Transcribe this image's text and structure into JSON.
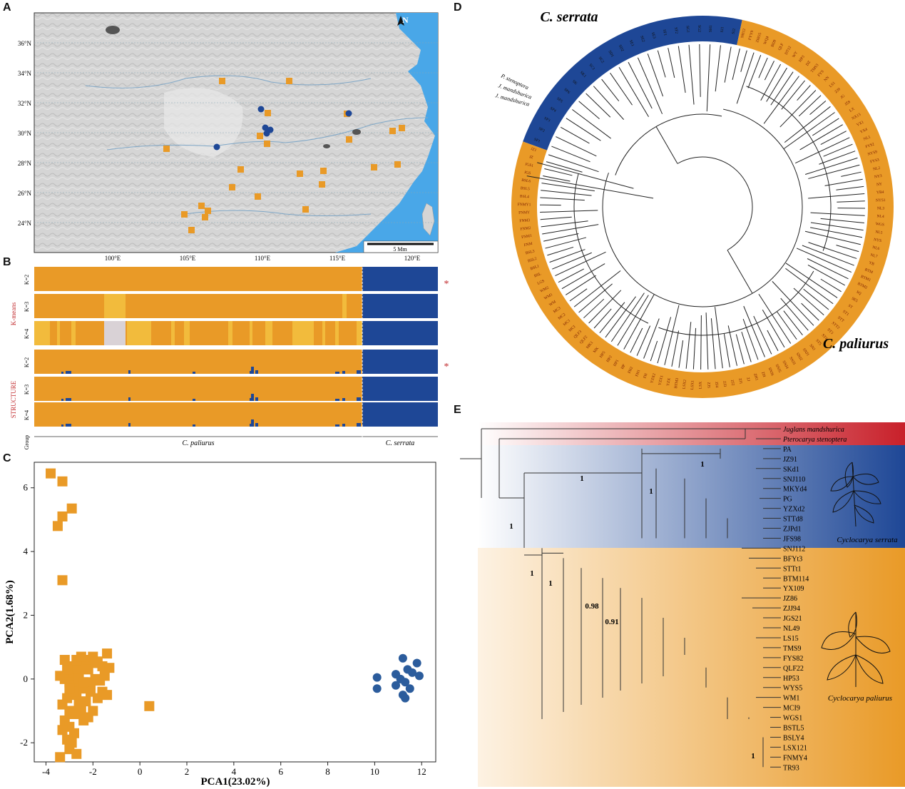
{
  "panels": {
    "a": "A",
    "b": "B",
    "c": "C",
    "d": "D",
    "e": "E"
  },
  "colors": {
    "orange": "#E99A27",
    "blue": "#1E4796",
    "light_orange": "#F2BB3C",
    "pale_gray": "#D9D2D6",
    "sea": "#49A7E8"
  },
  "map": {
    "lat_labels": [
      "36°N",
      "34°N",
      "32°N",
      "30°N",
      "28°N",
      "26°N",
      "24°N"
    ],
    "lon_labels": [
      "100°E",
      "105°E",
      "110°E",
      "115°E",
      "120°E"
    ],
    "scale_label": "5 Mm",
    "north_label": "N"
  },
  "structure_bars": {
    "kmeans_label": "K-means",
    "structure_label": "STRUCTURE",
    "row_labels": [
      "K=2",
      "K=3",
      "K=4",
      "K=2",
      "K=3",
      "K=4",
      "Group"
    ],
    "group_paliurus": "C. paliurus",
    "group_serrata": "C. serrata",
    "best_marker": "*"
  },
  "chart_data": {
    "type": "scatter",
    "xlabel": "PCA1(23.02%)",
    "ylabel": "PCA2(1.68%)",
    "xlim": [
      -4.5,
      12.6
    ],
    "ylim": [
      -2.6,
      6.8
    ],
    "xticks": [
      "-4",
      "-2",
      "0",
      "2",
      "4",
      "6",
      "8",
      "10",
      "12"
    ],
    "yticks": [
      "-2",
      "0",
      "2",
      "4",
      "6"
    ],
    "series": [
      {
        "color": "#E99A27",
        "marker": "square",
        "points": [
          [
            -3.8,
            6.45
          ],
          [
            -3.3,
            6.2
          ],
          [
            -2.9,
            5.35
          ],
          [
            -3.3,
            5.1
          ],
          [
            -3.5,
            4.8
          ],
          [
            -3.3,
            3.1
          ],
          [
            -3.4,
            0.1
          ],
          [
            -3.2,
            0.0
          ],
          [
            -3.0,
            -0.1
          ],
          [
            -2.8,
            0.2
          ],
          [
            -2.6,
            0.3
          ],
          [
            -2.4,
            0.5
          ],
          [
            -2.2,
            0.6
          ],
          [
            -2.0,
            0.7
          ],
          [
            -1.8,
            0.55
          ],
          [
            -1.6,
            0.4
          ],
          [
            -1.4,
            0.8
          ],
          [
            -1.3,
            0.35
          ],
          [
            -1.5,
            0.1
          ],
          [
            -1.7,
            -0.05
          ],
          [
            -1.9,
            0.0
          ],
          [
            -2.1,
            -0.2
          ],
          [
            -2.3,
            -0.1
          ],
          [
            -2.5,
            -0.3
          ],
          [
            -2.7,
            -0.5
          ],
          [
            -2.9,
            -0.2
          ],
          [
            -3.1,
            -0.6
          ],
          [
            -3.3,
            -0.8
          ],
          [
            -3.0,
            -1.0
          ],
          [
            -2.8,
            -1.1
          ],
          [
            -2.6,
            -0.8
          ],
          [
            -2.4,
            -1.3
          ],
          [
            -2.2,
            -1.2
          ],
          [
            -2.0,
            -1.0
          ],
          [
            -1.8,
            -0.6
          ],
          [
            -1.6,
            -0.4
          ],
          [
            -1.4,
            -0.5
          ],
          [
            -3.2,
            -1.3
          ],
          [
            -3.0,
            -1.5
          ],
          [
            -2.8,
            -1.7
          ],
          [
            -3.1,
            -1.9
          ],
          [
            -2.9,
            -2.0
          ],
          [
            -3.3,
            -1.6
          ],
          [
            -3.0,
            -2.2
          ],
          [
            -2.7,
            -2.35
          ],
          [
            -3.4,
            -2.45
          ],
          [
            -2.5,
            -1.0
          ],
          [
            -2.3,
            -0.7
          ],
          [
            -2.1,
            -0.4
          ],
          [
            -2.6,
            0.0
          ],
          [
            -2.4,
            -0.1
          ],
          [
            -2.9,
            0.4
          ],
          [
            -3.1,
            0.3
          ],
          [
            -3.2,
            0.6
          ],
          [
            -2.7,
            0.6
          ],
          [
            -2.5,
            0.7
          ],
          [
            -2.2,
            0.3
          ],
          [
            -1.9,
            0.5
          ],
          [
            0.4,
            -0.85
          ],
          [
            -2.8,
            -0.4
          ],
          [
            -3.0,
            -0.3
          ]
        ]
      },
      {
        "color": "#2B5C9C",
        "marker": "circle",
        "points": [
          [
            10.1,
            0.05
          ],
          [
            10.1,
            -0.3
          ],
          [
            10.9,
            0.15
          ],
          [
            11.2,
            0.65
          ],
          [
            11.4,
            0.3
          ],
          [
            11.6,
            0.2
          ],
          [
            11.8,
            0.5
          ],
          [
            11.9,
            0.1
          ],
          [
            11.3,
            -0.1
          ],
          [
            11.1,
            0.0
          ],
          [
            10.9,
            -0.2
          ],
          [
            11.2,
            -0.5
          ],
          [
            11.3,
            -0.6
          ],
          [
            11.5,
            -0.3
          ]
        ]
      }
    ]
  },
  "circ_tree": {
    "title_serrata": "C. serrata",
    "title_paliurus": "C. paliurus",
    "outgroups": [
      "P. stenoptera",
      "J. mandshurica",
      "J. mandshurica"
    ],
    "serrata_tips": [
      "SP1",
      "SP2",
      "SP3",
      "SP4",
      "SP5",
      "SP6",
      "SK",
      "SK1",
      "SC1",
      "SC2",
      "SD1",
      "SD2",
      "SE1",
      "SE2",
      "SE3",
      "SF1",
      "SF2",
      "SG1",
      "SG2",
      "SH1",
      "SJ1",
      "SJ2"
    ],
    "paliurus_tips": [
      "NH12",
      "FYY9",
      "ZHO5",
      "WQ4",
      "BD9",
      "QLF",
      "DT12",
      "WY",
      "HP3",
      "DZ",
      "TMS3",
      "FYS",
      "NN",
      "LS1",
      "ZJ9",
      "JG",
      "JZ8",
      "LX",
      "NX13",
      "YX1",
      "YX4",
      "NL1",
      "FYS2",
      "NYS9",
      "FYS3",
      "NL2",
      "NY3",
      "NY",
      "YB4",
      "NYS1",
      "NL3",
      "NL4",
      "WGS",
      "NL5",
      "NYS",
      "NL6",
      "NL7",
      "YB",
      "BTM",
      "BTM1",
      "BTM2",
      "SQ",
      "SE5",
      "ST",
      "ST1",
      "STT",
      "STT2",
      "ST3",
      "ST4",
      "ST5",
      "SNJ",
      "SNJ1",
      "SNJ2",
      "SNJ3",
      "SNJ4",
      "SNJ5",
      "SNJ6",
      "ZH",
      "ZH1",
      "ZJ",
      "ZJ1",
      "ZJ2",
      "ZJ3",
      "ZJ4",
      "ZJ5",
      "LSX",
      "LSX1",
      "LSX2",
      "BTM3",
      "YZX",
      "YZX1",
      "YZX2",
      "FH",
      "FH1",
      "FH2",
      "HP",
      "HP1",
      "HP2",
      "HP5",
      "MK",
      "MK1",
      "QLF2",
      "QLF3",
      "MCI",
      "MC1",
      "MC2",
      "MC3",
      "WM",
      "WM1",
      "WM2",
      "LGS",
      "BSL",
      "BSL1",
      "BSL2",
      "BSL3",
      "FNM",
      "FNM1",
      "FNM2",
      "FNM3",
      "FNMY",
      "FNMY1",
      "BSL4",
      "BSL5",
      "BSL6",
      "JGS",
      "JGS1",
      "JZ",
      "JZ1"
    ]
  },
  "phylo": {
    "tips": [
      "Juglans mandshurica",
      "Pterocarya stenoptera",
      "PA",
      "JZ91",
      "SKd1",
      "SNJ110",
      "MKYd4",
      "PG",
      "YZXd2",
      "STTd8",
      "ZJPd1",
      "JFS98",
      "SNJ112",
      "BFYt3",
      "STTt1",
      "BTM114",
      "YX109",
      "JZ86",
      "ZJJ94",
      "JGS21",
      "NL49",
      "LS15",
      "TMS9",
      "FYS82",
      "QLF22",
      "HP53",
      "WYS5",
      "WM1",
      "MCI9",
      "WGS1",
      "BSTL5",
      "BSLY4",
      "LSX121",
      "FNMY4",
      "TR93"
    ],
    "supports": [
      "1",
      "1",
      "1",
      "1",
      "1",
      "1",
      "0.98",
      "0.91",
      "1"
    ],
    "label_serrata": "Cyclocarya serrata",
    "label_paliurus": "Cyclocarya paliurus"
  }
}
